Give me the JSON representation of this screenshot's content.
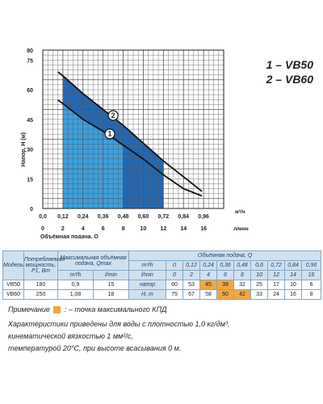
{
  "chart_data": {
    "type": "area",
    "ylabel": "Напор, Н (м)",
    "xlabel": "Объёмная подача, Q",
    "ylim": [
      0,
      80
    ],
    "xlim_m3h": [
      0,
      1.08
    ],
    "y_ticks": [
      "0",
      "15",
      "30",
      "45",
      "60",
      "75",
      "80"
    ],
    "x_ticks_m3h": [
      "0,0",
      "0,12",
      "0,24",
      "0,36",
      "0,48",
      "0,60",
      "0,72",
      "0,84",
      "0,96"
    ],
    "x_ticks_lmin": [
      "0",
      "2",
      "4",
      "6",
      "8",
      "10",
      "12",
      "14",
      "16"
    ],
    "x_unit_m3h": "м³/ч",
    "x_unit_lmin": "л/мин",
    "grid": true,
    "series": [
      {
        "name": "1 – VB50",
        "marker_label": "1",
        "x": [
          0.0,
          0.12,
          0.24,
          0.36,
          0.48,
          0.6,
          0.72,
          0.84,
          0.96
        ],
        "y": [
          60,
          53,
          45,
          39,
          32,
          25,
          17,
          10,
          6
        ],
        "work_range": [
          0.12,
          0.48
        ]
      },
      {
        "name": "2 – VB60",
        "marker_label": "2",
        "x": [
          0.0,
          0.12,
          0.24,
          0.36,
          0.48,
          0.6,
          0.72,
          0.84,
          0.96
        ],
        "y": [
          75,
          67,
          58,
          50,
          42,
          33,
          24,
          16,
          8
        ],
        "work_range": [
          0.12,
          0.72
        ]
      }
    ]
  },
  "legend": [
    "1 – VB50",
    "2 – VB60"
  ],
  "table": {
    "h_model": "Модель",
    "h_power": "Потребляемая мощность, P1, Вт",
    "h_maxflow": "Максимальная объёмная подача, Qmax",
    "h_flow": "Объёмная подача, Q",
    "u_m3h": "m³/h",
    "u_lmin": "l/min",
    "q_m3h": [
      "0",
      "0,12",
      "0,24",
      "0,36",
      "0,48",
      "0,6",
      "0,72",
      "0,84",
      "0,96"
    ],
    "q_lmin": [
      "0",
      "2",
      "4",
      "6",
      "8",
      "10",
      "12",
      "14",
      "16"
    ],
    "head_label": "напор",
    "head_unit": "H, m",
    "rows": [
      {
        "model": "VB50",
        "power": "180",
        "qmax_m3h": "0,9",
        "qmax_lmin": "15",
        "heads": [
          "60",
          "53",
          "45",
          "39",
          "32",
          "25",
          "17",
          "10",
          "6"
        ]
      },
      {
        "model": "VB60",
        "power": "250",
        "qmax_m3h": "1,08",
        "qmax_lmin": "18",
        "heads": [
          "75",
          "67",
          "58",
          "50",
          "42",
          "33",
          "24",
          "16",
          "8"
        ]
      }
    ]
  },
  "notes": {
    "note_label": "Примечание",
    "note_text": ": – точка максимального КПД",
    "line1": "Характеристики приведены для воды с плотностью 1,0 кг/дм³,",
    "line2": "кинематической вязкостью 1 мм²/с,",
    "line3": "температурой 20°С, при высоте всасывания 0 м."
  },
  "colors": {
    "vb50_fill": "#3fa3e0",
    "vb60_fill": "#1660b0",
    "curve": "#111111",
    "highlight": "#f3a640"
  }
}
